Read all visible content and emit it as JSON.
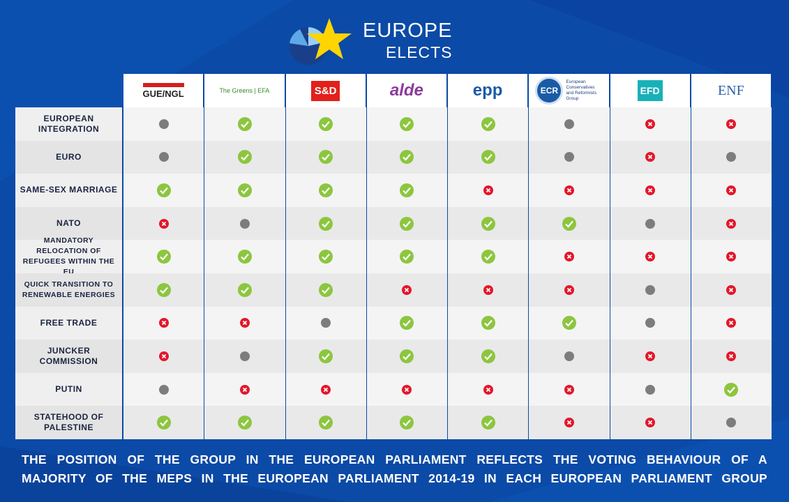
{
  "header": {
    "brand_top": "EUROPE",
    "brand_bottom": "ELECTS"
  },
  "table": {
    "columns": [
      {
        "label": "GUE/NGL",
        "style": "gue"
      },
      {
        "label": "The Greens | EFA",
        "style": "greens"
      },
      {
        "label": "S&D",
        "style": "sd"
      },
      {
        "label": "alde",
        "style": "alde"
      },
      {
        "label": "epp",
        "style": "epp"
      },
      {
        "label": "ECR",
        "sublabel": "European Conservatives and Reformists Group",
        "style": "ecr"
      },
      {
        "label": "EFD",
        "style": "efd"
      },
      {
        "label": "ENF",
        "style": "enf"
      }
    ],
    "rows": [
      {
        "topic": "EUROPEAN INTEGRATION",
        "cells": [
          "neutral",
          "yes",
          "yes",
          "yes",
          "yes",
          "neutral",
          "no",
          "no"
        ]
      },
      {
        "topic": "EURO",
        "cells": [
          "neutral",
          "yes",
          "yes",
          "yes",
          "yes",
          "neutral",
          "no",
          "neutral"
        ]
      },
      {
        "topic": "SAME-SEX MARRIAGE",
        "cells": [
          "yes",
          "yes",
          "yes",
          "yes",
          "no",
          "no",
          "no",
          "no"
        ]
      },
      {
        "topic": "NATO",
        "cells": [
          "no",
          "neutral",
          "yes",
          "yes",
          "yes",
          "yes",
          "neutral",
          "no"
        ]
      },
      {
        "topic": "MANDATORY RELOCATION OF REFUGEES WITHIN THE EU",
        "cells": [
          "yes",
          "yes",
          "yes",
          "yes",
          "yes",
          "no",
          "no",
          "no"
        ]
      },
      {
        "topic": "QUICK TRANSITION TO RENEWABLE ENERGIES",
        "cells": [
          "yes",
          "yes",
          "yes",
          "no",
          "no",
          "no",
          "neutral",
          "no"
        ]
      },
      {
        "topic": "FREE TRADE",
        "cells": [
          "no",
          "no",
          "neutral",
          "yes",
          "yes",
          "yes",
          "neutral",
          "no"
        ]
      },
      {
        "topic": "JUNCKER COMMISSION",
        "cells": [
          "no",
          "neutral",
          "yes",
          "yes",
          "yes",
          "neutral",
          "no",
          "no"
        ]
      },
      {
        "topic": "PUTIN",
        "cells": [
          "neutral",
          "no",
          "no",
          "no",
          "no",
          "no",
          "neutral",
          "yes"
        ]
      },
      {
        "topic": "STATEHOOD OF PALESTINE",
        "cells": [
          "yes",
          "yes",
          "yes",
          "yes",
          "yes",
          "no",
          "no",
          "neutral"
        ]
      }
    ]
  },
  "footer": {
    "lines": [
      "THE POSITION OF THE GROUP IN THE EUROPEAN PARLIAMENT REFLECTS THE VOTING BEHAVIOUR OF A",
      "MAJORITY OF THE MEPS IN THE EUROPEAN PARLIAMENT 2014-19 IN EACH EUROPEAN PARLIAMENT GROUP"
    ]
  }
}
